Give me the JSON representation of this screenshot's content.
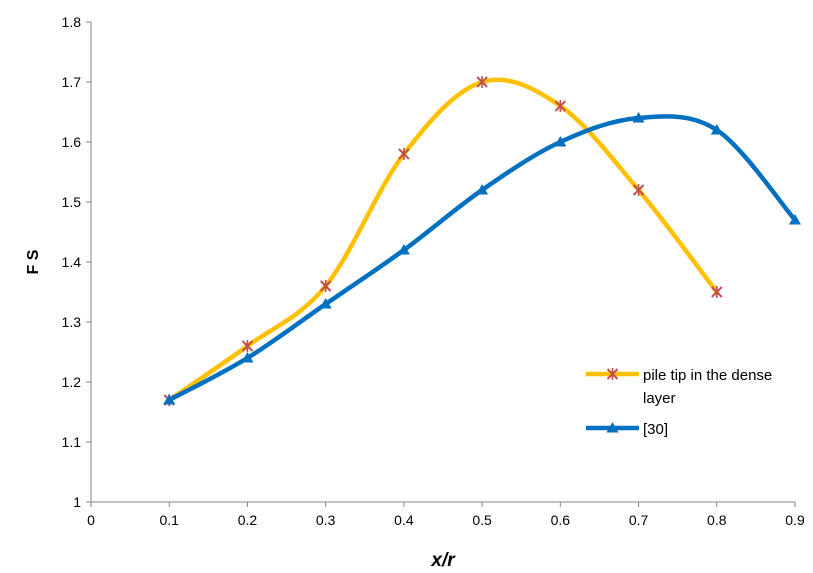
{
  "chart_data": {
    "type": "line",
    "xlabel": "x/r",
    "ylabel": "F S",
    "xlim": [
      0,
      0.9
    ],
    "ylim": [
      1,
      1.8
    ],
    "xticks": [
      "0",
      "0.1",
      "0.2",
      "0.3",
      "0.4",
      "0.5",
      "0.6",
      "0.7",
      "0.8",
      "0.9"
    ],
    "yticks": [
      "1",
      "1.1",
      "1.2",
      "1.3",
      "1.4",
      "1.5",
      "1.6",
      "1.7",
      "1.8"
    ],
    "grid": false,
    "smooth": true,
    "legend_position": "right",
    "series": [
      {
        "name": "pile tip in the dense layer",
        "color": "#FFC000",
        "marker": "star",
        "marker_color": "#C0504D",
        "x": [
          0.1,
          0.2,
          0.3,
          0.4,
          0.5,
          0.6,
          0.7,
          0.8
        ],
        "y": [
          1.17,
          1.26,
          1.36,
          1.58,
          1.7,
          1.66,
          1.52,
          1.35
        ]
      },
      {
        "name": "[30]",
        "color": "#0070C0",
        "marker": "triangle",
        "marker_color": "#0070C0",
        "x": [
          0.1,
          0.2,
          0.3,
          0.4,
          0.5,
          0.6,
          0.7,
          0.8,
          0.9
        ],
        "y": [
          1.17,
          1.24,
          1.33,
          1.42,
          1.52,
          1.6,
          1.64,
          1.62,
          1.47
        ]
      }
    ]
  }
}
